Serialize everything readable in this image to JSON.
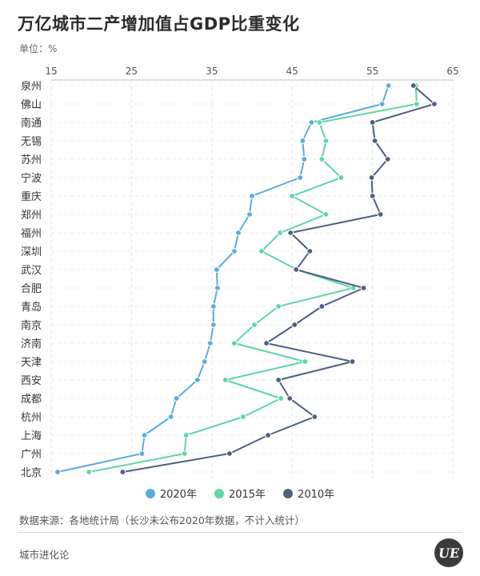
{
  "title": "万亿城市二产增加值占GDP比重变化",
  "unit_label": "单位：%",
  "source_note": "数据来源：各地统计局（长沙未公布2020年数据，不计入统计）",
  "footer_brand": "城市进化论",
  "logo_text": "UE",
  "chart_data": {
    "type": "line",
    "orientation": "horizontal",
    "x_ticks": [
      15,
      25,
      35,
      45,
      55,
      65
    ],
    "xlim": [
      15,
      65
    ],
    "grid": true,
    "legend_position": "bottom",
    "categories": [
      "泉州",
      "佛山",
      "南通",
      "无锡",
      "苏州",
      "宁波",
      "重庆",
      "郑州",
      "福州",
      "深圳",
      "武汉",
      "合肥",
      "青岛",
      "南京",
      "济南",
      "天津",
      "西安",
      "成都",
      "杭州",
      "上海",
      "广州",
      "北京"
    ],
    "series": [
      {
        "name": "2020年",
        "color": "#5aace0",
        "values": [
          57.0,
          56.2,
          47.4,
          46.3,
          46.5,
          46.0,
          40.0,
          39.7,
          38.3,
          37.8,
          35.6,
          35.7,
          35.2,
          35.2,
          34.8,
          34.1,
          33.2,
          30.6,
          29.9,
          26.6,
          26.3,
          15.8
        ]
      },
      {
        "name": "2015年",
        "color": "#5ed6a6",
        "values": [
          60.4,
          60.5,
          48.4,
          49.2,
          48.7,
          51.1,
          45.0,
          49.2,
          43.5,
          41.2,
          45.6,
          52.6,
          43.3,
          40.3,
          37.8,
          46.6,
          36.7,
          43.6,
          38.9,
          31.8,
          31.6,
          19.7
        ]
      },
      {
        "name": "2010年",
        "color": "#4e5f80",
        "values": [
          60.1,
          62.7,
          55.0,
          55.3,
          56.9,
          54.9,
          55.0,
          56.0,
          44.8,
          47.2,
          45.5,
          53.9,
          48.7,
          45.3,
          41.8,
          52.5,
          43.3,
          44.7,
          47.8,
          42.0,
          37.2,
          23.9
        ]
      }
    ]
  }
}
